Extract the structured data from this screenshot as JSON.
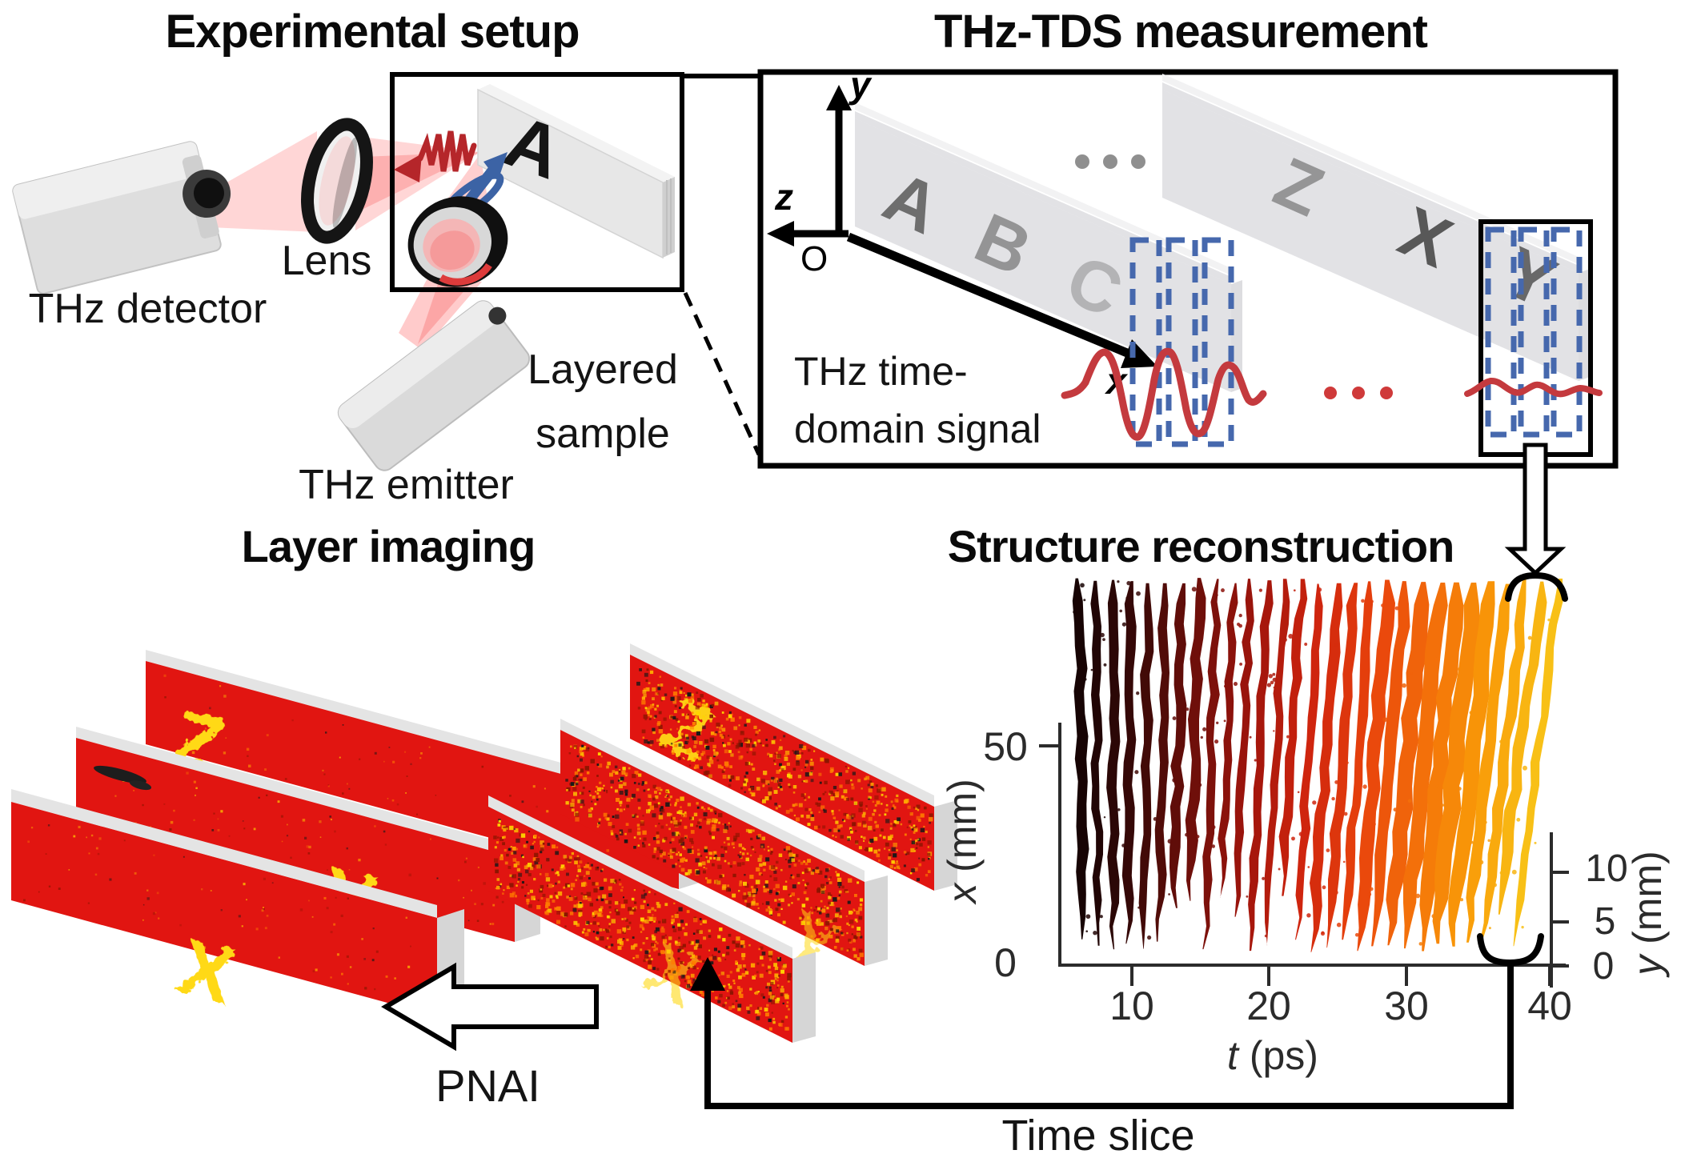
{
  "titles": {
    "experimental_setup": "Experimental setup",
    "thz_tds": "THz-TDS measurement",
    "layer_imaging": "Layer imaging",
    "structure_reconstruction": "Structure reconstruction"
  },
  "setup": {
    "detector_label": "THz detector",
    "lens_label": "Lens",
    "emitter_label": "THz emitter",
    "sample_line1": "Layered",
    "sample_line2": "sample",
    "sample_letter": "A",
    "beam_pink": "rgba(255,118,118,0.30)",
    "beam_core": "rgba(247,90,90,0.38)",
    "pulse_red": "#b5262a",
    "pulse_blue": "#3c63a5"
  },
  "tds": {
    "signal_line1": "THz time-",
    "signal_line2": "domain signal",
    "axis": {
      "x": "x",
      "y": "y",
      "z": "z",
      "origin": "O"
    },
    "group1_letters": [
      "A",
      "B",
      "C"
    ],
    "group2_letters": [
      "Z",
      "X",
      "Y"
    ],
    "ellipsis_gray": "...",
    "ellipsis_red": "...",
    "waveform_red": "#c43a3e",
    "dashed_blue": "#4668ad",
    "slab_gray": "rgba(203,203,207,0.55)"
  },
  "layer_imaging": {
    "clean_letters": {
      "rear": "Z",
      "mid": "Y",
      "front": "X"
    },
    "noisy_letters": {
      "rear": "Z",
      "mid": "Y",
      "front": "X"
    },
    "pnai_label": "PNAI",
    "slab_red": "#e11511",
    "letter_yellow": "#ffd913",
    "cap_gray": "#d6d6d6",
    "edge_gray": "#e4e4e4",
    "noise_colors": [
      "#ffd400",
      "#ffaa00",
      "#ff7a00",
      "#8b1500",
      "#181818"
    ]
  },
  "flow": {
    "time_slice_label": "Time slice"
  },
  "chart_data": {
    "type": "scatter",
    "title": "Structure reconstruction",
    "subtitle": "",
    "x_axis": {
      "sym": "t",
      "unit": " (ps)"
    },
    "y_axis": {
      "sym": "x",
      "unit": " (mm)"
    },
    "z_axis": {
      "sym": "y",
      "unit": " (mm)"
    },
    "x_tick_labels": [
      "10",
      "20",
      "30",
      "40"
    ],
    "x_ticks": [
      10,
      20,
      30,
      40
    ],
    "y_tick_labels": [
      "0",
      "50"
    ],
    "y_ticks": [
      0,
      50
    ],
    "z_tick_labels": [
      "0",
      "5",
      "10"
    ],
    "z_ticks": [
      0,
      5,
      10
    ],
    "x_range": [
      6,
      41
    ],
    "y_range": [
      0,
      55
    ],
    "z_range": [
      0,
      13
    ],
    "n_stripes": 29,
    "stripe_t_start": 6.5,
    "stripe_t_end": 37.8,
    "time_slice_t": 37.3,
    "colormap": [
      "#170404",
      "#3a0907",
      "#6f0f0a",
      "#a0150c",
      "#cf250e",
      "#e8420c",
      "#f3700a",
      "#f99a08",
      "#f8c016"
    ],
    "legend": "none",
    "grid": false
  }
}
